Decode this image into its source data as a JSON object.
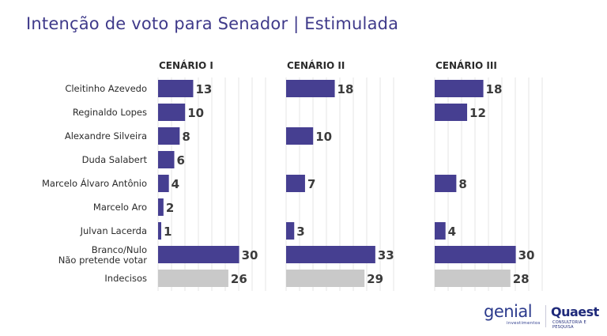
{
  "title": "Intenção de voto para Senador | Estimulada",
  "chart_data": {
    "type": "bar",
    "orientation": "horizontal",
    "categories": [
      "Cleitinho Azevedo",
      "Reginaldo Lopes",
      "Alexandre Silveira",
      "Duda Salabert",
      "Marcelo Álvaro Antônio",
      "Marcelo Aro",
      "Julvan Lacerda",
      "Branco/Nulo|Não pretende votar",
      "Indecisos"
    ],
    "series": [
      {
        "name": "CENÁRIO I",
        "values": [
          13,
          10,
          8,
          6,
          4,
          2,
          1,
          30,
          26
        ]
      },
      {
        "name": "CENÁRIO II",
        "values": [
          18,
          null,
          10,
          null,
          7,
          null,
          3,
          33,
          29
        ]
      },
      {
        "name": "CENÁRIO III",
        "values": [
          18,
          12,
          null,
          null,
          8,
          null,
          4,
          30,
          28
        ]
      }
    ],
    "colors": {
      "bar": "#463f91",
      "bar_undecided": "#c9c9c9",
      "value_text": "#3b3b3b",
      "grid": "#e6e6e6"
    },
    "grid": true,
    "xlim": [
      0,
      40
    ]
  },
  "logos": {
    "genial": {
      "name": "genial",
      "subtitle": "investimentos"
    },
    "quaest": {
      "name": "Quaest",
      "subtitle": "CONSULTORIA E PESQUISA"
    }
  }
}
